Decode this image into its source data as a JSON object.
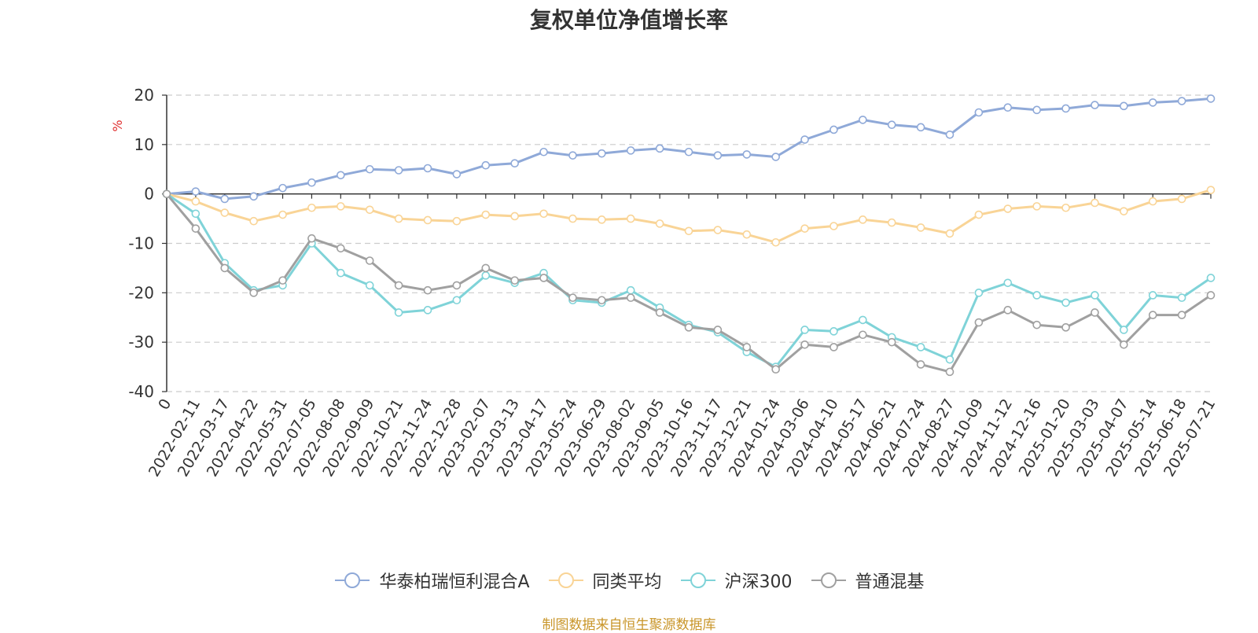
{
  "chart_data": {
    "type": "line",
    "title": "复权单位净值增长率",
    "ylabel": "%",
    "ylim": [
      -40,
      20
    ],
    "yticks": [
      20,
      10,
      0,
      -10,
      -20,
      -30,
      -40
    ],
    "grid": true,
    "legend_position": "bottom",
    "x_labels": [
      "0",
      "2022-02-11",
      "2022-03-17",
      "2022-04-22",
      "2022-05-31",
      "2022-07-05",
      "2022-08-08",
      "2022-09-09",
      "2022-10-21",
      "2022-11-24",
      "2022-12-28",
      "2023-02-07",
      "2023-03-13",
      "2023-04-17",
      "2023-05-24",
      "2023-06-29",
      "2023-08-02",
      "2023-09-05",
      "2023-10-16",
      "2023-11-17",
      "2023-12-21",
      "2024-01-24",
      "2024-03-06",
      "2024-04-10",
      "2024-05-17",
      "2024-06-21",
      "2024-07-24",
      "2024-08-27",
      "2024-10-09",
      "2024-11-12",
      "2024-12-16",
      "2025-01-20",
      "2025-03-03",
      "2025-04-07",
      "2025-05-14",
      "2025-06-18",
      "2025-07-21"
    ],
    "series": [
      {
        "name": "华泰柏瑞恒利混合A",
        "color": "#8fa9d8",
        "values": [
          0,
          0.5,
          -1.0,
          -0.5,
          1.2,
          2.3,
          3.8,
          5.0,
          4.8,
          5.2,
          4.0,
          5.8,
          6.2,
          8.5,
          7.8,
          8.2,
          8.8,
          9.2,
          8.5,
          7.8,
          8.0,
          7.5,
          11.0,
          13.0,
          15.0,
          14.0,
          13.5,
          12.0,
          16.5,
          17.5,
          17.0,
          17.3,
          18.0,
          17.8,
          18.5,
          18.8,
          19.3
        ]
      },
      {
        "name": "同类平均",
        "color": "#f9d496",
        "values": [
          0,
          -1.5,
          -3.8,
          -5.5,
          -4.2,
          -2.8,
          -2.5,
          -3.2,
          -5.0,
          -5.3,
          -5.5,
          -4.2,
          -4.5,
          -4.0,
          -5.0,
          -5.2,
          -5.0,
          -6.0,
          -7.5,
          -7.3,
          -8.2,
          -9.8,
          -7.0,
          -6.5,
          -5.2,
          -5.8,
          -6.8,
          -8.0,
          -4.2,
          -3.0,
          -2.5,
          -2.8,
          -1.8,
          -3.5,
          -1.5,
          -1.0,
          0.8
        ]
      },
      {
        "name": "沪深300",
        "color": "#7fd3d8",
        "values": [
          0,
          -4.0,
          -14.0,
          -19.5,
          -18.5,
          -10.0,
          -16.0,
          -18.5,
          -24.0,
          -23.5,
          -21.5,
          -16.5,
          -18.0,
          -16.0,
          -21.5,
          -22.0,
          -19.5,
          -23.0,
          -26.5,
          -28.0,
          -32.0,
          -35.0,
          -27.5,
          -27.8,
          -25.5,
          -29.0,
          -31.0,
          -33.5,
          -20.0,
          -18.0,
          -20.5,
          -22.0,
          -20.5,
          -27.5,
          -20.5,
          -21.0,
          -17.0
        ]
      },
      {
        "name": "普通混基",
        "color": "#a0a0a0",
        "values": [
          0,
          -7.0,
          -15.0,
          -20.0,
          -17.5,
          -9.0,
          -11.0,
          -13.5,
          -18.5,
          -19.5,
          -18.5,
          -15.0,
          -17.5,
          -17.0,
          -21.0,
          -21.5,
          -21.0,
          -24.0,
          -27.0,
          -27.5,
          -31.0,
          -35.5,
          -30.5,
          -31.0,
          -28.5,
          -30.0,
          -34.5,
          -36.0,
          -26.0,
          -23.5,
          -26.5,
          -27.0,
          -24.0,
          -30.5,
          -24.5,
          -24.5,
          -20.5
        ]
      }
    ]
  },
  "source_note": "制图数据来自恒生聚源数据库"
}
